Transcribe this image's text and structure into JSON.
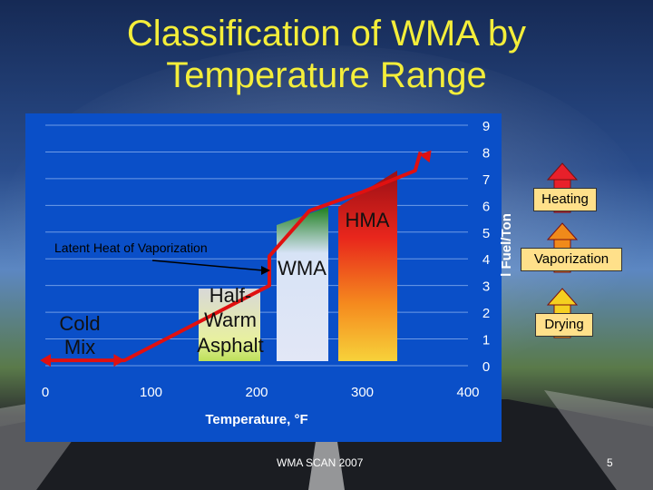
{
  "slide": {
    "title_line1": "Classification of WMA by",
    "title_line2": "Temperature Range",
    "footer_center": "WMA SCAN 2007",
    "page_number": "5"
  },
  "legend": {
    "heating": "Heating",
    "vaporization": "Vaporization",
    "drying": "Drying"
  },
  "colors": {
    "title": "#f4ee3a",
    "chart_bg": "#0a4fc8",
    "line": "#e01010",
    "arrow_fill": "#e8202a",
    "arrow_outline": "#7a1010",
    "heating_arrow": "#e8202a",
    "vaporization_arrow": "#f08a1a",
    "drying_arrow": "#f5d020"
  },
  "chart_data": {
    "type": "area",
    "title": "",
    "xlabel": "Temperature, °F",
    "ylabel": "l Fuel/Ton",
    "xlim": [
      0,
      400
    ],
    "ylim": [
      0,
      9
    ],
    "x_ticks": [
      "0",
      "100",
      "200",
      "300",
      "400"
    ],
    "y_ticks": [
      "0",
      "1",
      "2",
      "3",
      "4",
      "5",
      "6",
      "7",
      "8",
      "9"
    ],
    "grid": true,
    "fuel_curve": {
      "x": [
        0,
        75,
        212,
        212,
        250,
        300,
        350,
        355
      ],
      "y": [
        0.2,
        0.2,
        3.0,
        4.1,
        5.8,
        6.5,
        7.3,
        8.0
      ]
    },
    "regions": [
      {
        "label": "Cold Mix",
        "x_from": 0,
        "x_to": 75
      },
      {
        "label": "Half-Warm Asphalt",
        "x_from": 145,
        "x_to": 205
      },
      {
        "label": "WMA",
        "x_from": 215,
        "x_to": 265
      },
      {
        "label": "HMA",
        "x_from": 275,
        "x_to": 330
      }
    ],
    "annotations": [
      {
        "text": "Latent Heat of Vaporization"
      }
    ]
  }
}
